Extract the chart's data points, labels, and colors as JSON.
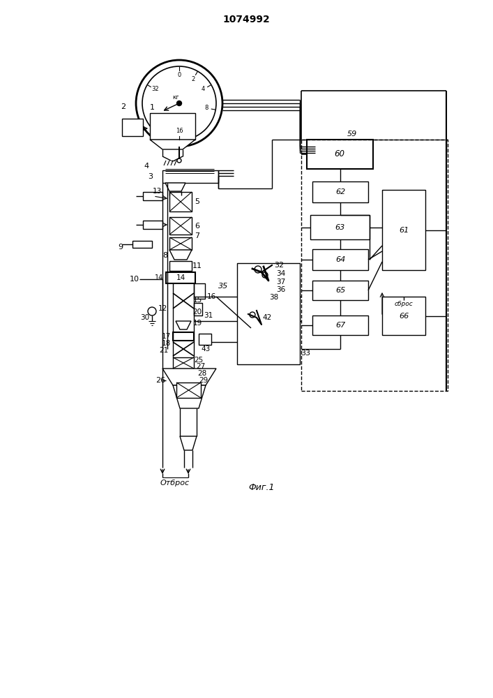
{
  "title": "1074992",
  "fig_label": "Фиг.1",
  "otbros_label": "Отброс",
  "sbros_label": "сброс",
  "background": "#ffffff"
}
